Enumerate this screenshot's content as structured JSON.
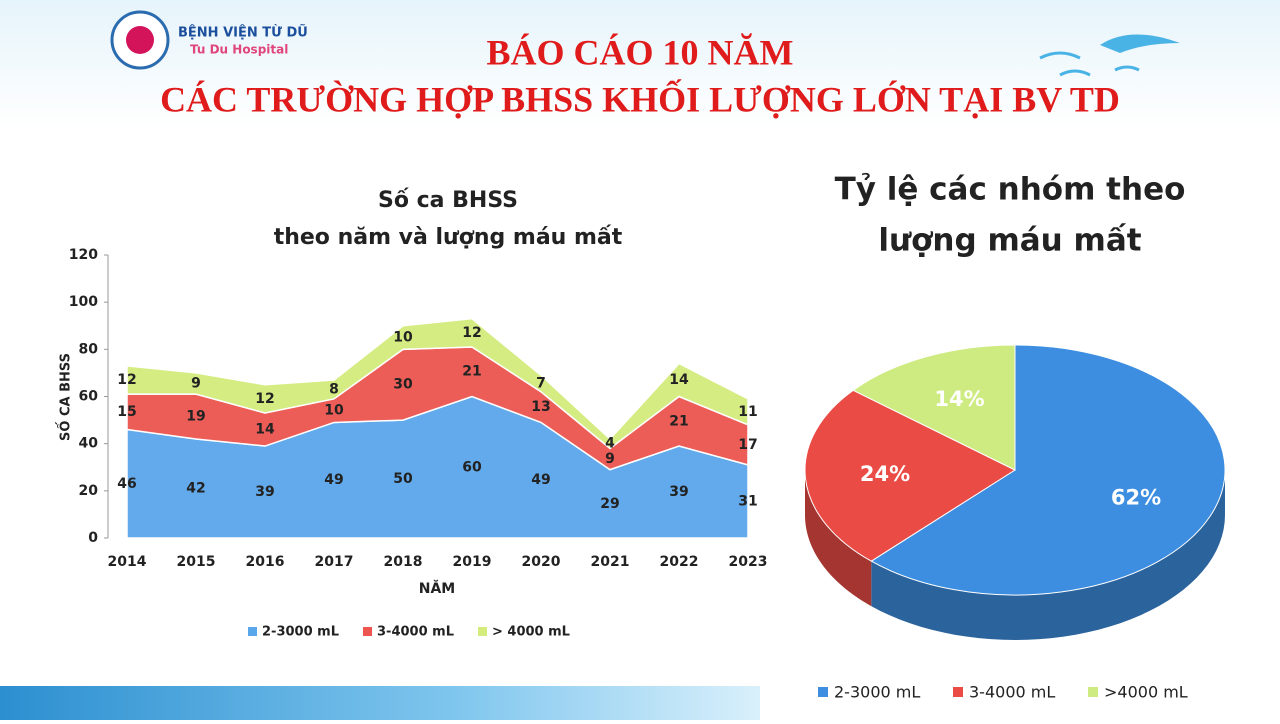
{
  "header": {
    "hospital_name": "BỆNH VIỆN TỪ DŨ",
    "hospital_name_en": "Tu Du Hospital",
    "title_line1": "BÁO CÁO 10 NĂM",
    "title_line2": "CÁC TRƯỜNG HỢP BHSS KHỐI LƯỢNG LỚN TẠI BV TD"
  },
  "chart_data": [
    {
      "type": "area",
      "stacked": true,
      "title": "Số ca BHSS",
      "subtitle": "theo năm và lượng máu mất",
      "x_label": "NĂM",
      "y_label": "SỐ CA BHSS",
      "categories": [
        "2014",
        "2015",
        "2016",
        "2017",
        "2018",
        "2019",
        "2020",
        "2021",
        "2022",
        "2023"
      ],
      "series": [
        {
          "name": "2-3000 mL",
          "color": "#5aa6ea",
          "values": [
            46,
            42,
            39,
            49,
            50,
            60,
            49,
            29,
            39,
            31
          ]
        },
        {
          "name": "3-4000 mL",
          "color": "#ec5550",
          "values": [
            15,
            19,
            14,
            10,
            30,
            21,
            13,
            9,
            21,
            17
          ]
        },
        {
          "name": "> 4000 mL",
          "color": "#d3ec7c",
          "values": [
            12,
            9,
            12,
            8,
            10,
            12,
            7,
            4,
            14,
            11
          ]
        }
      ],
      "ylim": [
        0,
        120
      ],
      "yticks": [
        0,
        20,
        40,
        60,
        80,
        100,
        120
      ],
      "legend": "bottom"
    },
    {
      "type": "pie",
      "title": "Tỷ lệ các nhóm theo",
      "subtitle": "lượng máu mất",
      "categories": [
        "2-3000 mL",
        "3-4000 mL",
        ">4000 mL"
      ],
      "values": [
        62,
        24,
        14
      ],
      "value_labels": [
        "62%",
        "24%",
        "14%"
      ],
      "colors": [
        "#3d8ee0",
        "#ea4b45",
        "#cdeb80"
      ],
      "legend": "bottom"
    }
  ]
}
